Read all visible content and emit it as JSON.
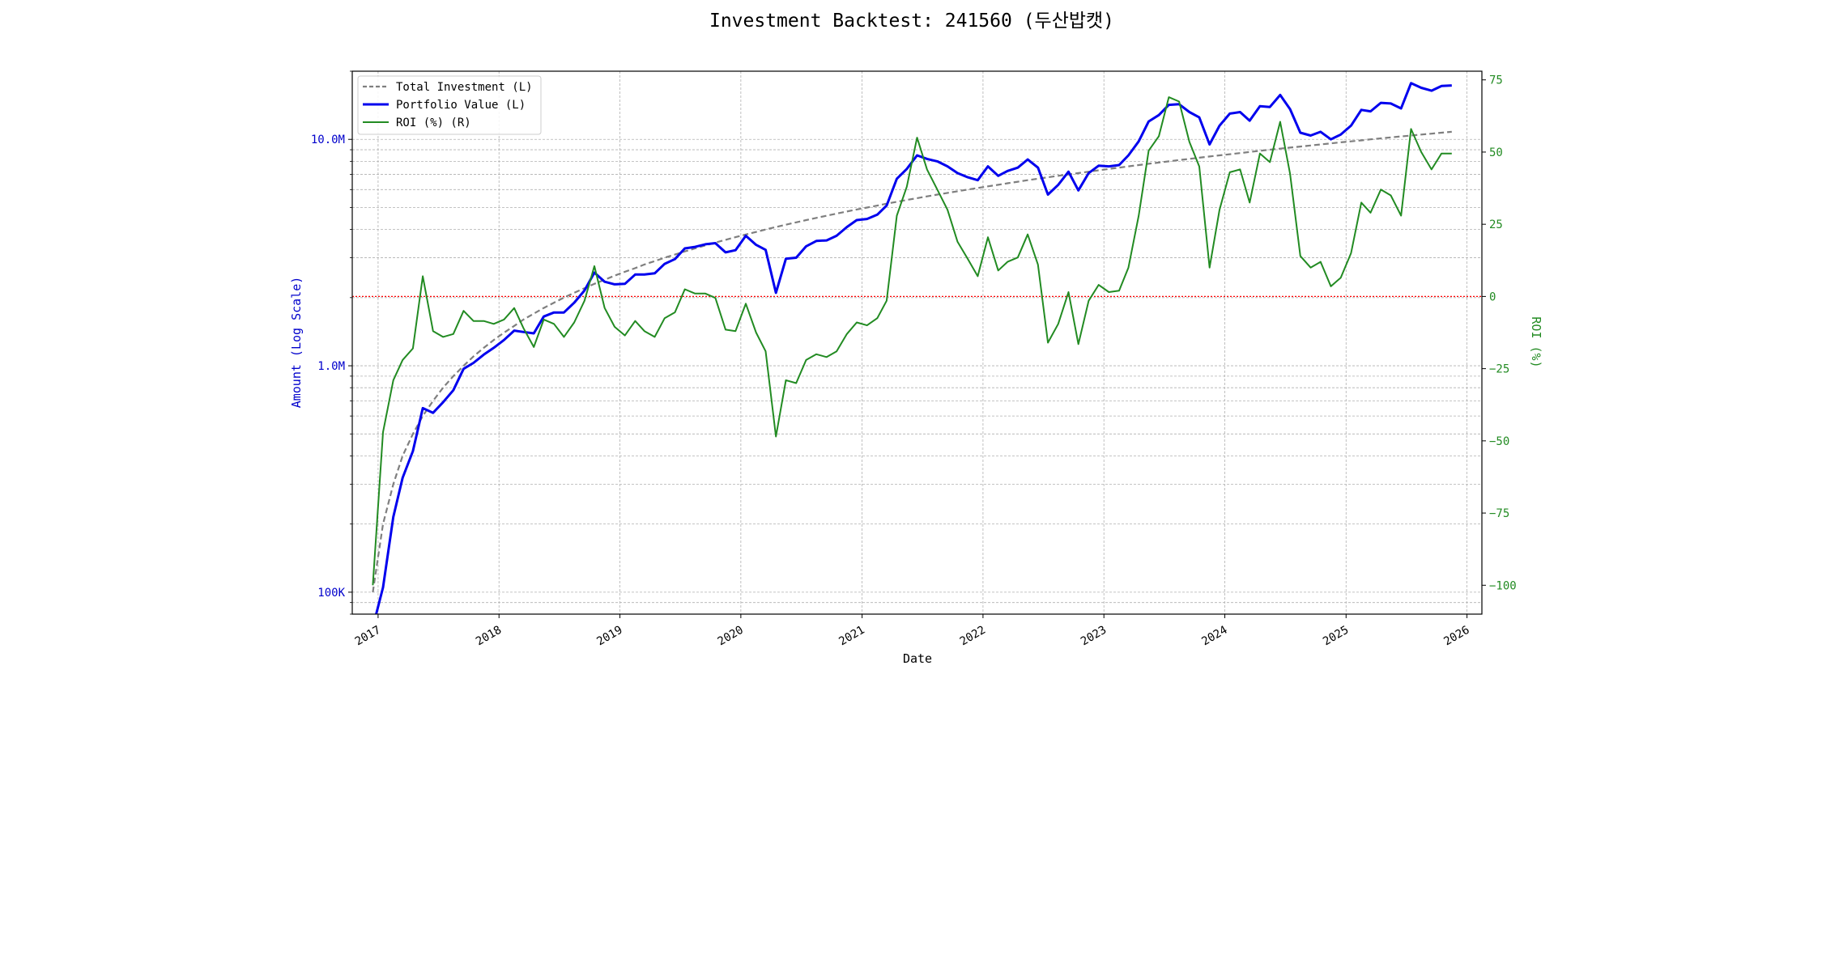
{
  "title": "Investment Backtest: 241560 (두산밥캣)",
  "colors": {
    "investment": "#7f7f7f",
    "portfolio": "#0000ee",
    "roi": "#228b22",
    "zero_line": "#ff0000",
    "left_axis_text": "#0000cc",
    "right_axis_text": "#228b22"
  },
  "chart_data": {
    "type": "line",
    "title": "Investment Backtest: 241560 (두산밥캣)",
    "xlabel": "Date",
    "ylabel_left": "Amount (Log Scale)",
    "ylabel_right": "ROI (%)",
    "left_scale": "log",
    "ylim_left": [
      80000,
      20000000
    ],
    "ylim_right": [
      -110,
      78
    ],
    "xlim": [
      "2016-10-15",
      "2026-02-15"
    ],
    "grid": true,
    "legend_position": "top-left",
    "x_ticks": [
      "2017",
      "2018",
      "2019",
      "2020",
      "2021",
      "2022",
      "2023",
      "2024",
      "2025",
      "2026"
    ],
    "left_ticks": [
      {
        "value": 100000,
        "label": "100K"
      },
      {
        "value": 1000000,
        "label": "1.0M"
      },
      {
        "value": 10000000,
        "label": "10.0M"
      }
    ],
    "right_ticks": [
      -100,
      -75,
      -50,
      -25,
      0,
      25,
      50,
      75
    ],
    "reference_line": {
      "axis": "right",
      "value": 0
    },
    "legend": [
      "Total Investment (L)",
      "Portfolio Value (L)",
      "ROI (%) (R)"
    ],
    "dates": [
      "2016-12",
      "2017-01",
      "2017-02",
      "2017-03",
      "2017-04",
      "2017-05",
      "2017-06",
      "2017-07",
      "2017-08",
      "2017-09",
      "2017-10",
      "2017-11",
      "2017-12",
      "2018-01",
      "2018-02",
      "2018-03",
      "2018-04",
      "2018-05",
      "2018-06",
      "2018-07",
      "2018-08",
      "2018-09",
      "2018-10",
      "2018-11",
      "2018-12",
      "2019-01",
      "2019-02",
      "2019-03",
      "2019-04",
      "2019-05",
      "2019-06",
      "2019-07",
      "2019-08",
      "2019-09",
      "2019-10",
      "2019-11",
      "2019-12",
      "2020-01",
      "2020-02",
      "2020-03",
      "2020-04",
      "2020-05",
      "2020-06",
      "2020-07",
      "2020-08",
      "2020-09",
      "2020-10",
      "2020-11",
      "2020-12",
      "2021-01",
      "2021-02",
      "2021-03",
      "2021-04",
      "2021-05",
      "2021-06",
      "2021-07",
      "2021-08",
      "2021-09",
      "2021-10",
      "2021-11",
      "2021-12",
      "2022-01",
      "2022-02",
      "2022-03",
      "2022-04",
      "2022-05",
      "2022-06",
      "2022-07",
      "2022-08",
      "2022-09",
      "2022-10",
      "2022-11",
      "2022-12",
      "2023-01",
      "2023-02",
      "2023-03",
      "2023-04",
      "2023-05",
      "2023-06",
      "2023-07",
      "2023-08",
      "2023-09",
      "2023-10",
      "2023-11",
      "2023-12",
      "2024-01",
      "2024-02",
      "2024-03",
      "2024-04",
      "2024-05",
      "2024-06",
      "2024-07",
      "2024-08",
      "2024-09",
      "2024-10",
      "2024-11",
      "2024-12",
      "2025-01",
      "2025-02",
      "2025-03",
      "2025-04",
      "2025-05",
      "2025-06",
      "2025-07",
      "2025-08",
      "2025-09",
      "2025-10",
      "2025-11"
    ],
    "series": [
      {
        "name": "Total Investment (L)",
        "axis": "left",
        "values": [
          100000,
          200000,
          300000,
          400000,
          500000,
          600000,
          700000,
          800000,
          900000,
          1000000,
          1100000,
          1200000,
          1300000,
          1400000,
          1500000,
          1600000,
          1700000,
          1800000,
          1900000,
          2000000,
          2100000,
          2200000,
          2300000,
          2400000,
          2500000,
          2600000,
          2700000,
          2800000,
          2900000,
          3000000,
          3100000,
          3200000,
          3300000,
          3400000,
          3500000,
          3600000,
          3700000,
          3800000,
          3900000,
          4000000,
          4100000,
          4200000,
          4300000,
          4400000,
          4500000,
          4600000,
          4700000,
          4800000,
          4900000,
          5000000,
          5100000,
          5200000,
          5300000,
          5400000,
          5500000,
          5600000,
          5700000,
          5800000,
          5900000,
          6000000,
          6100000,
          6200000,
          6300000,
          6400000,
          6500000,
          6600000,
          6700000,
          6800000,
          6900000,
          7000000,
          7100000,
          7200000,
          7300000,
          7400000,
          7500000,
          7600000,
          7700000,
          7800000,
          7900000,
          8000000,
          8100000,
          8200000,
          8300000,
          8400000,
          8500000,
          8600000,
          8700000,
          8800000,
          8900000,
          9000000,
          9100000,
          9200000,
          9300000,
          9400000,
          9500000,
          9600000,
          9700000,
          9800000,
          9900000,
          10000000,
          10100000,
          10200000,
          10300000,
          10400000,
          10500000,
          10600000,
          10700000,
          10800000
        ]
      },
      {
        "name": "Portfolio Value (L)",
        "axis": "left",
        "values": [
          70000,
          105000,
          215000,
          320000,
          420000,
          650000,
          620000,
          690000,
          780000,
          970000,
          1030000,
          1120000,
          1200000,
          1300000,
          1430000,
          1410000,
          1390000,
          1650000,
          1720000,
          1720000,
          1900000,
          2150000,
          2580000,
          2350000,
          2290000,
          2300000,
          2530000,
          2530000,
          2560000,
          2820000,
          2960000,
          3300000,
          3350000,
          3440000,
          3480000,
          3170000,
          3240000,
          3750000,
          3420000,
          3250000,
          2100000,
          2970000,
          3000000,
          3370000,
          3560000,
          3580000,
          3750000,
          4100000,
          4400000,
          4450000,
          4650000,
          5100000,
          6700000,
          7400000,
          8500000,
          8200000,
          8000000,
          7600000,
          7100000,
          6800000,
          6600000,
          7600000,
          6900000,
          7250000,
          7500000,
          8150000,
          7500000,
          5700000,
          6300000,
          7200000,
          5950000,
          7100000,
          7650000,
          7600000,
          7700000,
          8500000,
          9800000,
          12000000,
          12800000,
          14200000,
          14300000,
          13200000,
          12500000,
          9500000,
          11500000,
          13000000,
          13200000,
          12100000,
          14000000,
          13900000,
          15700000,
          13600000,
          10700000,
          10400000,
          10800000,
          10000000,
          10500000,
          11500000,
          13500000,
          13300000,
          14500000,
          14400000,
          13700000,
          17700000,
          16900000,
          16400000,
          17200000,
          17300000
        ]
      },
      {
        "name": "ROI (%) (R)",
        "axis": "right",
        "values": [
          -100,
          -47,
          -29,
          -22,
          -18,
          7,
          -12,
          -14,
          -13,
          -5,
          -8.5,
          -8.5,
          -9.5,
          -8,
          -4,
          -11,
          -17.5,
          -8,
          -9.5,
          -14,
          -9,
          -1.5,
          10.5,
          -4,
          -10.5,
          -13.5,
          -8.5,
          -12,
          -14,
          -7.5,
          -5.5,
          2.5,
          1,
          1,
          -0.5,
          -11.5,
          -12,
          -2.5,
          -12.5,
          -19,
          -48.5,
          -29,
          -30,
          -22,
          -20,
          -21,
          -19,
          -13,
          -9,
          -10,
          -7.5,
          -1.5,
          28,
          38,
          55,
          44,
          37,
          30,
          19,
          13,
          7,
          20.5,
          9,
          12,
          13.5,
          21.5,
          11,
          -16,
          -9.5,
          1.5,
          -16.5,
          -1.5,
          4,
          1.5,
          2,
          10,
          28,
          50.5,
          55.5,
          69,
          67.5,
          53.5,
          45,
          10,
          30,
          43,
          44,
          32.5,
          49.5,
          46.5,
          60.5,
          42.5,
          14,
          10,
          12,
          3.5,
          6.5,
          15,
          32.5,
          29,
          37,
          35,
          28,
          58,
          50,
          44,
          49.5,
          49.5
        ]
      }
    ]
  }
}
